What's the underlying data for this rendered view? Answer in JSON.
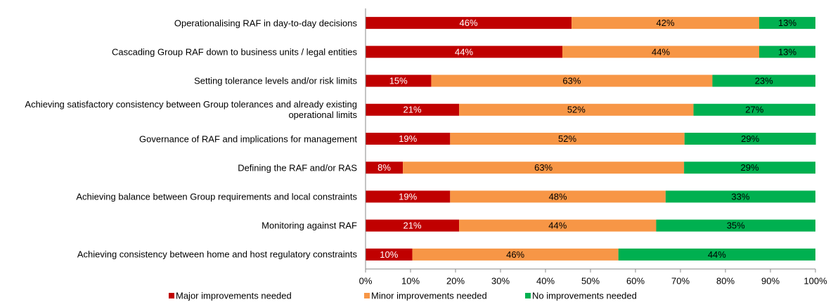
{
  "chart_data": {
    "type": "bar",
    "orientation": "horizontal",
    "stacked": true,
    "categories": [
      "Operationalising RAF in day-to-day decisions",
      "Cascading Group RAF down to business units / legal entities",
      "Setting tolerance levels and/or risk limits",
      "Achieving satisfactory consistency between Group tolerances and already existing operational limits",
      "Governance of RAF and implications for management",
      "Defining the RAF and/or RAS",
      "Achieving balance between Group requirements and local constraints",
      "Monitoring against RAF",
      "Achieving consistency between home and host regulatory constraints"
    ],
    "series": [
      {
        "name": "Major improvements needed",
        "color": "#c00000",
        "label_color": "#ffffff",
        "values": [
          45.8,
          43.75,
          14.6,
          20.8,
          18.8,
          8.3,
          18.8,
          20.8,
          10.4
        ],
        "value_labels": [
          "46%",
          "44%",
          "15%",
          "21%",
          "19%",
          "8%",
          "19%",
          "21%",
          "10%"
        ]
      },
      {
        "name": "Minor improvements needed",
        "color": "#f79646",
        "label_color": "#000000",
        "values": [
          41.7,
          43.75,
          62.5,
          52.1,
          52.1,
          62.5,
          47.9,
          43.8,
          45.8
        ],
        "value_labels": [
          "42%",
          "44%",
          "63%",
          "52%",
          "52%",
          "63%",
          "48%",
          "44%",
          "46%"
        ]
      },
      {
        "name": "No improvements needed",
        "color": "#00b050",
        "label_color": "#000000",
        "values": [
          12.5,
          12.5,
          22.9,
          27.1,
          29.2,
          29.2,
          33.3,
          35.4,
          43.8
        ],
        "value_labels": [
          "13%",
          "13%",
          "23%",
          "27%",
          "29%",
          "29%",
          "33%",
          "35%",
          "44%"
        ]
      }
    ],
    "xlim": [
      0,
      100
    ],
    "xticks": [
      {
        "value": 0,
        "label": "0%"
      },
      {
        "value": 10,
        "label": "10%"
      },
      {
        "value": 20,
        "label": "20%"
      },
      {
        "value": 30,
        "label": "30%"
      },
      {
        "value": 40,
        "label": "40%"
      },
      {
        "value": 50,
        "label": "50%"
      },
      {
        "value": 60,
        "label": "60%"
      },
      {
        "value": 70,
        "label": "70%"
      },
      {
        "value": 80,
        "label": "80%"
      },
      {
        "value": 90,
        "label": "90%"
      },
      {
        "value": 100,
        "label": "100%"
      }
    ],
    "legend": "bottom"
  }
}
